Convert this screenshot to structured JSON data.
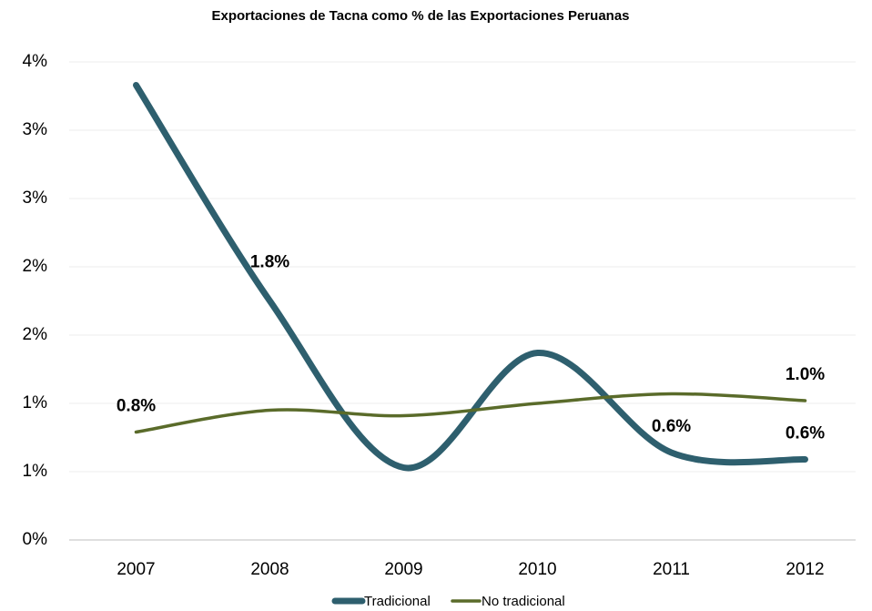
{
  "chart_data": {
    "type": "line",
    "title": "Exportaciones de Tacna como % de las Exportaciones Peruanas",
    "categories": [
      "2007",
      "2008",
      "2009",
      "2010",
      "2011",
      "2012"
    ],
    "series": [
      {
        "name": "Tradicional",
        "color": "#2e5f6e",
        "values": [
          3.33,
          1.75,
          0.53,
          1.37,
          0.64,
          0.59
        ],
        "value_labels": [
          null,
          "1.8%",
          null,
          null,
          "0.6%",
          "0.6%"
        ]
      },
      {
        "name": "No tradicional",
        "color": "#5a6b2a",
        "values": [
          0.79,
          0.95,
          0.91,
          1.0,
          1.07,
          1.02
        ],
        "value_labels": [
          "0.8%",
          null,
          null,
          null,
          null,
          "1.0%"
        ]
      }
    ],
    "ylim": [
      0,
      3.5
    ],
    "yticks": [
      {
        "value": 0,
        "label": "0%"
      },
      {
        "value": 0.5,
        "label": "1%"
      },
      {
        "value": 1,
        "label": "1%"
      },
      {
        "value": 1.5,
        "label": "2%"
      },
      {
        "value": 2,
        "label": "2%"
      },
      {
        "value": 2.5,
        "label": "3%"
      },
      {
        "value": 3,
        "label": "3%"
      },
      {
        "value": 3.5,
        "label": "4%"
      }
    ],
    "grid": true,
    "legend": "bottom"
  }
}
